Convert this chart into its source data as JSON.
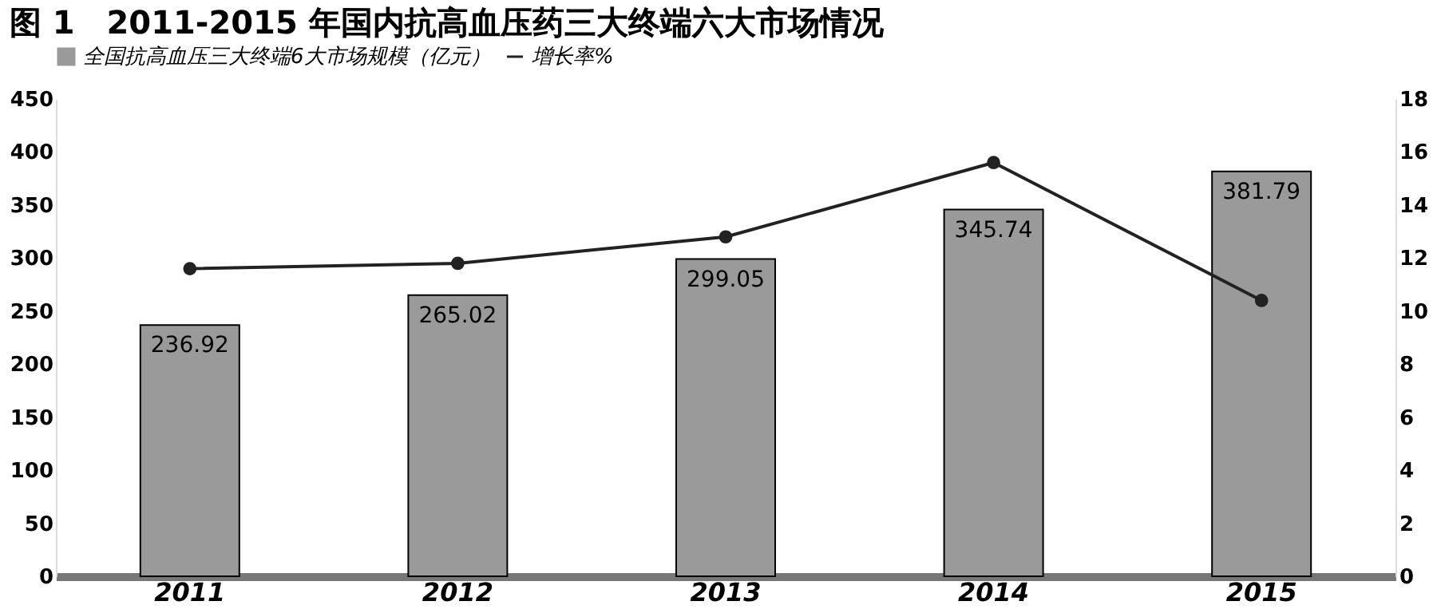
{
  "chart_data": {
    "type": "bar",
    "title": "图 1　2011-2015 年国内抗高血压药三大终端六大市场情况",
    "categories": [
      "2011",
      "2012",
      "2013",
      "2014",
      "2015"
    ],
    "series": [
      {
        "name": "全国抗高血压三大终端6大市场规模（亿元）",
        "type": "bar",
        "color": "#9a9a9a",
        "values": [
          236.92,
          265.02,
          299.05,
          345.74,
          381.79
        ],
        "value_labels": [
          "236.92",
          "265.02",
          "299.05",
          "345.74",
          "381.79"
        ]
      },
      {
        "name": "增长率%",
        "type": "line",
        "axis": "y2",
        "color": "#222222",
        "values": [
          11.6,
          11.8,
          12.8,
          15.6,
          10.4
        ]
      }
    ],
    "ylim": [
      0,
      450
    ],
    "yticks": [
      0,
      50,
      100,
      150,
      200,
      250,
      300,
      350,
      400,
      450
    ],
    "y2lim": [
      0,
      18
    ],
    "y2ticks": [
      0,
      2,
      4,
      6,
      8,
      10,
      12,
      14,
      16,
      18
    ],
    "grid": false,
    "legend": "top",
    "marker": "circle"
  }
}
